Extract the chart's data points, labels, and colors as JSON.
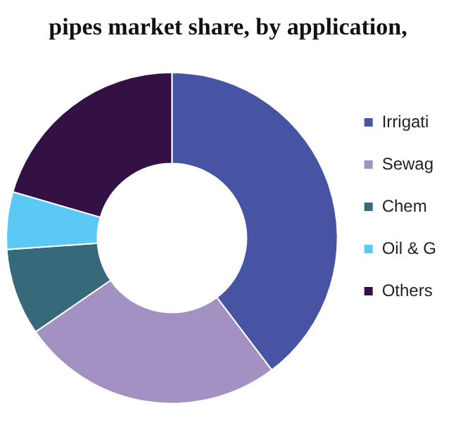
{
  "chart_data": {
    "type": "donut",
    "title": "pipes market share, by application,",
    "categories": [
      "Irrigati",
      "Sewag",
      "Chem",
      "Oil & G",
      "Others"
    ],
    "values": [
      39.7,
      25.7,
      8.5,
      5.6,
      20.5
    ],
    "colors": [
      "#4754a3",
      "#a491c3",
      "#36697a",
      "#5bc9f5",
      "#341145"
    ],
    "legend": "right"
  }
}
